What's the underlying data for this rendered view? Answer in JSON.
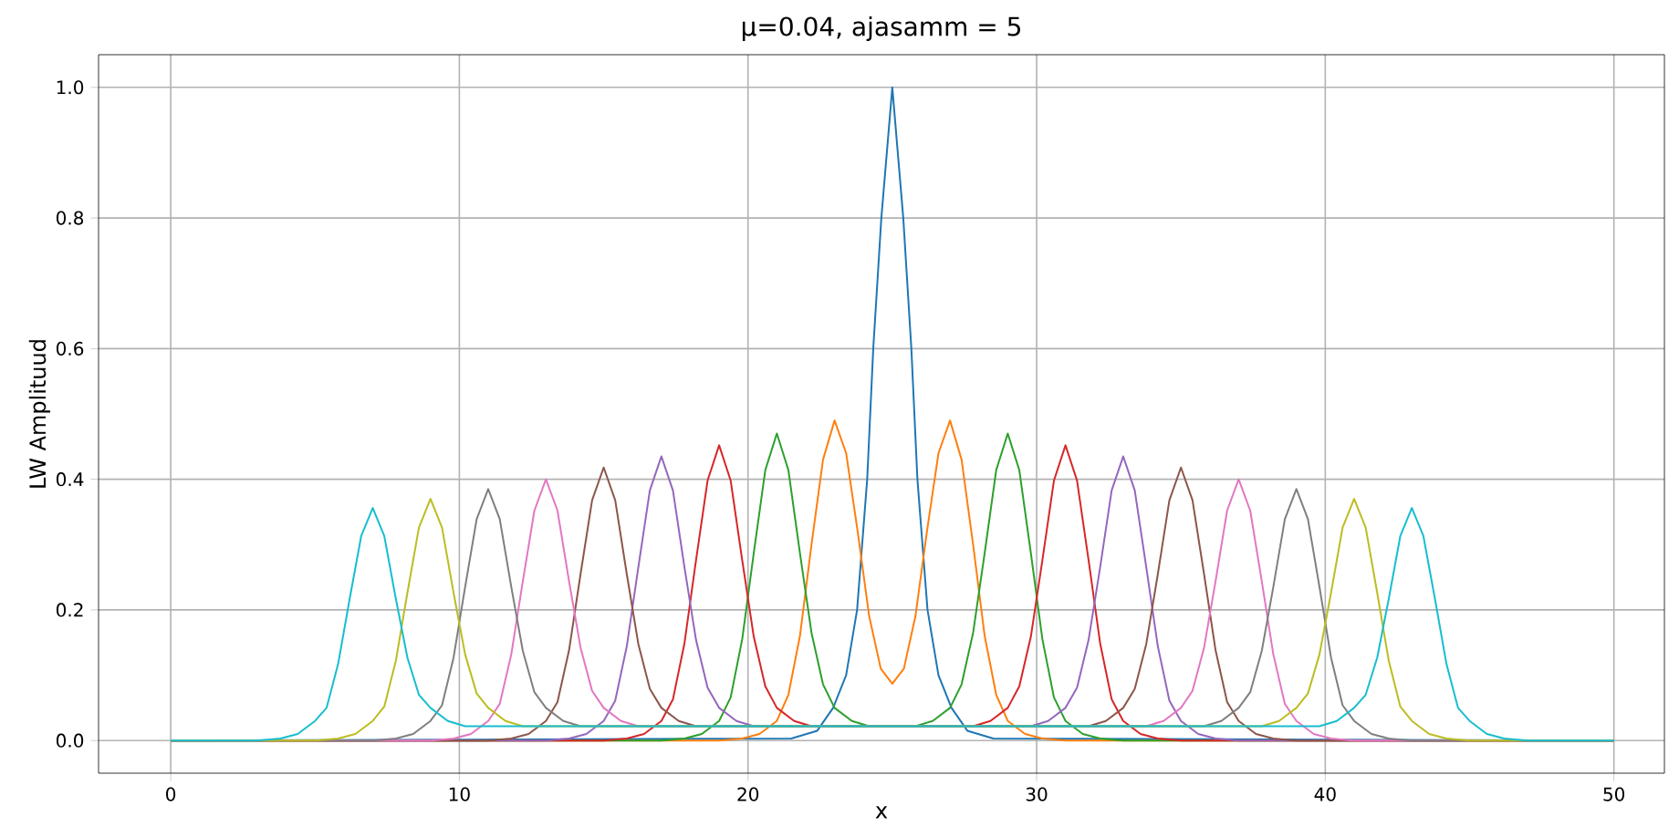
{
  "chart_data": {
    "type": "line",
    "title": "μ=0.04, ajasamm = 5",
    "xlabel": "x",
    "ylabel": "LW Amplituud",
    "xlim": [
      -2.5,
      51.75
    ],
    "ylim": [
      -0.05,
      1.05
    ],
    "xticks": [
      0,
      10,
      20,
      30,
      40,
      50
    ],
    "yticks": [
      {
        "value": 0,
        "label": "0.0"
      },
      {
        "value": 0.2,
        "label": "0.2"
      },
      {
        "value": 0.4,
        "label": "0.4"
      },
      {
        "value": 0.6,
        "label": "0.6"
      },
      {
        "value": 0.8,
        "label": "0.8"
      },
      {
        "value": 1,
        "label": "1.0"
      }
    ],
    "grid": true,
    "series": [
      {
        "color": "#1f77b4",
        "x": [
          0,
          21.5,
          22.4,
          22.95,
          23.4,
          23.78,
          24.13,
          24.34,
          24.62,
          25,
          25.38,
          25.66,
          25.87,
          26.22,
          26.6,
          27.05,
          27.6,
          28.5,
          50
        ],
        "values": [
          0,
          0.003,
          0.015,
          0.05,
          0.1,
          0.2,
          0.4,
          0.6,
          0.8,
          1.0,
          0.8,
          0.6,
          0.4,
          0.2,
          0.1,
          0.05,
          0.015,
          0.003,
          0
        ]
      },
      {
        "color": "#ff7f0e",
        "x": [
          0,
          19,
          19.8,
          20.4,
          21,
          21.4,
          21.8,
          22.2,
          22.6,
          23,
          23.4,
          23.8,
          24.2,
          24.6,
          25,
          25.4,
          25.8,
          26.2,
          26.6,
          27,
          27.4,
          27.8,
          28.2,
          28.6,
          29,
          29.6,
          30.2,
          31,
          50
        ],
        "values": [
          0,
          0,
          0.003,
          0.01,
          0.03,
          0.07,
          0.16,
          0.3,
          0.43,
          0.49,
          0.44,
          0.32,
          0.19,
          0.11,
          0.087,
          0.11,
          0.19,
          0.32,
          0.44,
          0.49,
          0.43,
          0.3,
          0.16,
          0.07,
          0.03,
          0.01,
          0.003,
          0,
          0
        ]
      },
      {
        "color": "#2ca02c",
        "x": [
          0,
          17,
          17.8,
          18.4,
          19,
          19.4,
          19.8,
          20.2,
          20.6,
          21,
          21.4,
          21.8,
          22.2,
          22.6,
          23,
          23.6,
          24.2,
          25.8,
          26.4,
          27,
          27.4,
          27.8,
          28.2,
          28.6,
          29,
          29.4,
          29.8,
          30.2,
          30.6,
          31,
          31.6,
          32.2,
          33,
          50
        ],
        "values": [
          0,
          0,
          0.003,
          0.01,
          0.03,
          0.066,
          0.155,
          0.287,
          0.414,
          0.47,
          0.414,
          0.287,
          0.165,
          0.086,
          0.05,
          0.03,
          0.022,
          0.022,
          0.03,
          0.05,
          0.086,
          0.165,
          0.287,
          0.414,
          0.47,
          0.414,
          0.287,
          0.155,
          0.066,
          0.03,
          0.01,
          0.003,
          0,
          0
        ]
      },
      {
        "color": "#d62728",
        "x": [
          0,
          15,
          15.8,
          16.4,
          17,
          17.4,
          17.8,
          18.2,
          18.6,
          19,
          19.4,
          19.8,
          20.2,
          20.6,
          21,
          21.6,
          22.2,
          27.8,
          28.4,
          29,
          29.4,
          29.8,
          30.2,
          30.6,
          31,
          31.4,
          31.8,
          32.2,
          32.6,
          33,
          33.6,
          34.2,
          35,
          50
        ],
        "values": [
          0,
          0,
          0.003,
          0.01,
          0.03,
          0.063,
          0.149,
          0.276,
          0.398,
          0.452,
          0.398,
          0.276,
          0.159,
          0.083,
          0.05,
          0.03,
          0.022,
          0.022,
          0.03,
          0.05,
          0.083,
          0.159,
          0.276,
          0.398,
          0.452,
          0.398,
          0.276,
          0.149,
          0.063,
          0.03,
          0.01,
          0.003,
          0,
          0
        ]
      },
      {
        "color": "#9467bd",
        "x": [
          0,
          13,
          13.8,
          14.4,
          15,
          15.4,
          15.8,
          16.2,
          16.6,
          17,
          17.4,
          17.8,
          18.2,
          18.6,
          19,
          19.6,
          20.2,
          29.8,
          30.4,
          31,
          31.4,
          31.8,
          32.2,
          32.6,
          33,
          33.4,
          33.8,
          34.2,
          34.6,
          35,
          35.6,
          36.2,
          37,
          50
        ],
        "values": [
          0,
          0,
          0.003,
          0.01,
          0.03,
          0.061,
          0.144,
          0.265,
          0.383,
          0.435,
          0.383,
          0.265,
          0.154,
          0.081,
          0.05,
          0.03,
          0.022,
          0.022,
          0.03,
          0.05,
          0.081,
          0.154,
          0.265,
          0.383,
          0.435,
          0.383,
          0.265,
          0.144,
          0.061,
          0.03,
          0.01,
          0.003,
          0,
          0
        ]
      },
      {
        "color": "#8c564b",
        "x": [
          0,
          11,
          11.8,
          12.4,
          13,
          13.4,
          13.8,
          14.2,
          14.6,
          15,
          15.4,
          15.8,
          16.2,
          16.6,
          17,
          17.6,
          18.2,
          31.8,
          32.4,
          33,
          33.4,
          33.8,
          34.2,
          34.6,
          35,
          35.4,
          35.8,
          36.2,
          36.6,
          37,
          37.6,
          38.2,
          39,
          50
        ],
        "values": [
          0,
          0,
          0.003,
          0.01,
          0.03,
          0.059,
          0.138,
          0.255,
          0.368,
          0.418,
          0.368,
          0.255,
          0.148,
          0.079,
          0.05,
          0.03,
          0.022,
          0.022,
          0.03,
          0.05,
          0.079,
          0.148,
          0.255,
          0.368,
          0.418,
          0.368,
          0.255,
          0.138,
          0.059,
          0.03,
          0.01,
          0.003,
          0,
          0
        ]
      },
      {
        "color": "#e377c2",
        "x": [
          0,
          9,
          9.8,
          10.4,
          11,
          11.4,
          11.8,
          12.2,
          12.6,
          13,
          13.4,
          13.8,
          14.2,
          14.6,
          15,
          15.6,
          16.2,
          33.8,
          34.4,
          35,
          35.4,
          35.8,
          36.2,
          36.6,
          37,
          37.4,
          37.8,
          38.2,
          38.6,
          39,
          39.6,
          40.2,
          41,
          50
        ],
        "values": [
          0,
          0,
          0.003,
          0.01,
          0.03,
          0.056,
          0.132,
          0.244,
          0.352,
          0.4,
          0.352,
          0.244,
          0.142,
          0.076,
          0.05,
          0.03,
          0.022,
          0.022,
          0.03,
          0.05,
          0.076,
          0.142,
          0.244,
          0.352,
          0.4,
          0.352,
          0.244,
          0.132,
          0.056,
          0.03,
          0.01,
          0.003,
          0,
          0
        ]
      },
      {
        "color": "#7f7f7f",
        "x": [
          0,
          7,
          7.8,
          8.4,
          9,
          9.4,
          9.8,
          10.2,
          10.6,
          11,
          11.4,
          11.8,
          12.2,
          12.6,
          13,
          13.6,
          14.2,
          35.8,
          36.4,
          37,
          37.4,
          37.8,
          38.2,
          38.6,
          39,
          39.4,
          39.8,
          40.2,
          40.6,
          41,
          41.6,
          42.2,
          43,
          50
        ],
        "values": [
          0,
          0,
          0.003,
          0.01,
          0.03,
          0.054,
          0.127,
          0.235,
          0.339,
          0.385,
          0.339,
          0.235,
          0.137,
          0.074,
          0.05,
          0.03,
          0.022,
          0.022,
          0.03,
          0.05,
          0.074,
          0.137,
          0.235,
          0.339,
          0.385,
          0.339,
          0.235,
          0.127,
          0.054,
          0.03,
          0.01,
          0.003,
          0,
          0
        ]
      },
      {
        "color": "#bcbd22",
        "x": [
          0,
          5,
          5.8,
          6.4,
          7,
          7.4,
          7.8,
          8.2,
          8.6,
          9,
          9.4,
          9.8,
          10.2,
          10.6,
          11,
          11.6,
          12.2,
          37.8,
          38.4,
          39,
          39.4,
          39.8,
          40.2,
          40.6,
          41,
          41.4,
          41.8,
          42.2,
          42.6,
          43,
          43.6,
          44.2,
          45,
          50
        ],
        "values": [
          0,
          0,
          0.003,
          0.01,
          0.03,
          0.052,
          0.122,
          0.226,
          0.326,
          0.37,
          0.326,
          0.226,
          0.132,
          0.072,
          0.05,
          0.03,
          0.022,
          0.022,
          0.03,
          0.05,
          0.072,
          0.132,
          0.226,
          0.326,
          0.37,
          0.326,
          0.226,
          0.122,
          0.052,
          0.03,
          0.01,
          0.003,
          0,
          0
        ]
      },
      {
        "color": "#17becf",
        "x": [
          0,
          3,
          3.8,
          4.4,
          5,
          5.4,
          5.8,
          6.2,
          6.6,
          7,
          7.4,
          7.8,
          8.2,
          8.6,
          9,
          9.6,
          10.2,
          39.8,
          40.4,
          41,
          41.4,
          41.8,
          42.2,
          42.6,
          43,
          43.4,
          43.8,
          44.2,
          44.6,
          45,
          45.6,
          46.2,
          47,
          50
        ],
        "values": [
          0,
          0,
          0.003,
          0.01,
          0.03,
          0.05,
          0.117,
          0.217,
          0.313,
          0.356,
          0.313,
          0.217,
          0.127,
          0.07,
          0.05,
          0.03,
          0.022,
          0.022,
          0.03,
          0.05,
          0.07,
          0.127,
          0.217,
          0.313,
          0.356,
          0.313,
          0.217,
          0.117,
          0.05,
          0.03,
          0.01,
          0.003,
          0,
          0
        ]
      }
    ]
  }
}
